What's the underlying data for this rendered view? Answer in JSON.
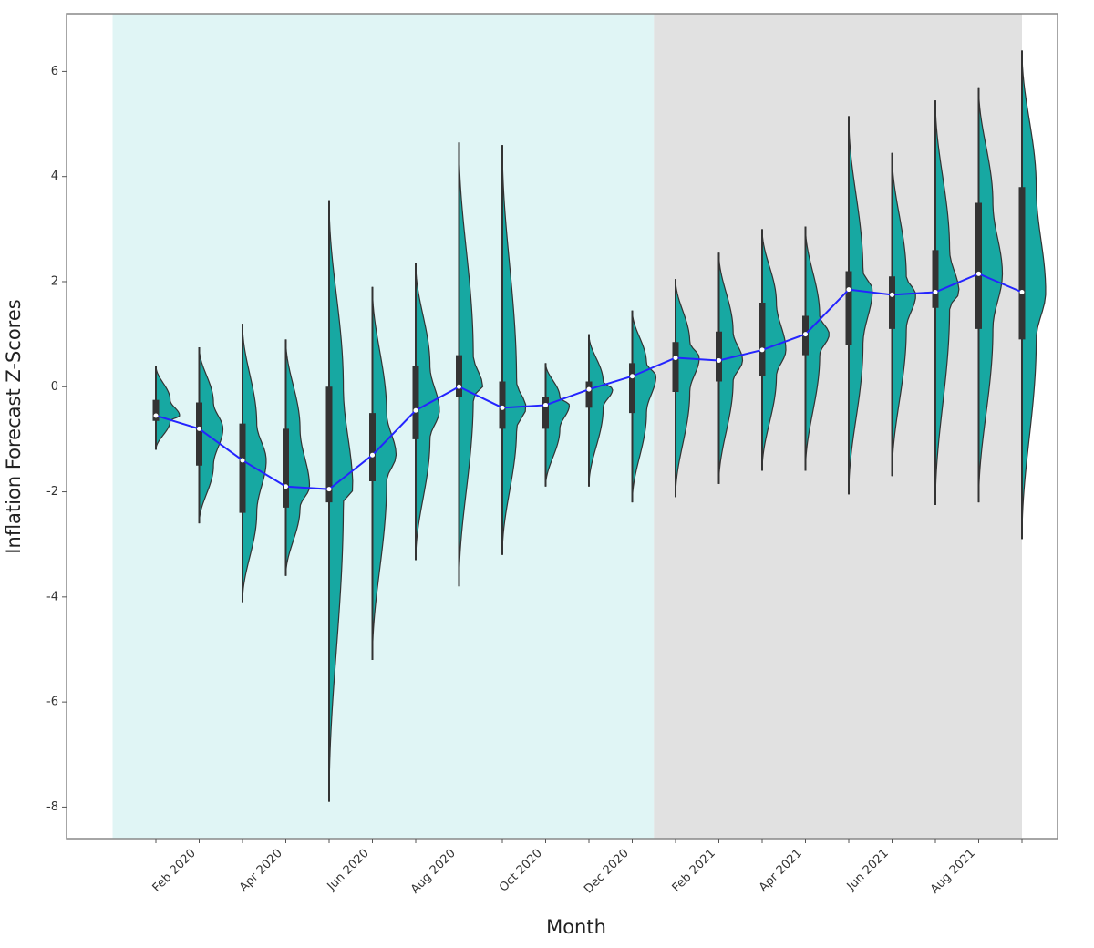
{
  "chart_data": {
    "type": "violin",
    "xlabel": "Month",
    "ylabel": "Inflation Forecast Z-Scores",
    "categories": [
      null,
      "Feb 2020",
      null,
      "Apr 2020",
      null,
      "Jun 2020",
      null,
      "Aug 2020",
      null,
      "Oct 2020",
      null,
      "Dec 2020",
      null,
      "Feb 2021",
      null,
      "Apr 2021",
      null,
      "Jun 2021",
      null,
      "Aug 2021",
      null
    ],
    "min": [
      -1.2,
      -2.6,
      -4.1,
      -3.6,
      -7.9,
      -5.2,
      -3.3,
      -3.8,
      -3.2,
      -1.9,
      -1.9,
      -2.2,
      -2.1,
      -1.85,
      -1.6,
      -1.6,
      -2.05,
      -1.7,
      -2.25,
      -2.2,
      -2.9
    ],
    "q1": [
      -0.65,
      -1.5,
      -2.4,
      -2.3,
      -2.2,
      -1.8,
      -1.0,
      -0.2,
      -0.8,
      -0.8,
      -0.4,
      -0.5,
      -0.1,
      0.1,
      0.2,
      0.6,
      0.8,
      1.1,
      1.5,
      1.1,
      0.9
    ],
    "median": [
      -0.55,
      -0.8,
      -1.4,
      -1.9,
      -1.95,
      -1.3,
      -0.45,
      0,
      -0.4,
      -0.35,
      -0.05,
      0.2,
      0.55,
      0.5,
      0.7,
      1.0,
      1.85,
      1.75,
      1.8,
      2.15,
      1.8
    ],
    "q3": [
      -0.25,
      -0.3,
      -0.7,
      -0.8,
      0,
      -0.5,
      0.4,
      0.6,
      0.1,
      -0.2,
      0.1,
      0.45,
      0.85,
      1.05,
      1.6,
      1.35,
      2.2,
      2.1,
      2.6,
      3.5,
      3.8
    ],
    "max": [
      0.4,
      0.75,
      1.2,
      0.9,
      3.55,
      1.9,
      2.35,
      4.65,
      4.6,
      0.45,
      1.0,
      1.45,
      2.05,
      2.55,
      3.0,
      3.05,
      5.15,
      4.45,
      5.45,
      5.7,
      6.4
    ],
    "violin_color": "#17a8a2",
    "box_color": "#333333",
    "median_line_color": "#2424ff",
    "spans": [
      {
        "start": -1,
        "end": 11.5,
        "color": "#e0f5f5"
      },
      {
        "start": 11.5,
        "end": 20,
        "color": "#e1e1e1"
      }
    ],
    "ylim": [
      -8.6,
      7.1
    ],
    "yticks": [
      -8,
      -6,
      -4,
      -2,
      0,
      2,
      4,
      6
    ]
  }
}
